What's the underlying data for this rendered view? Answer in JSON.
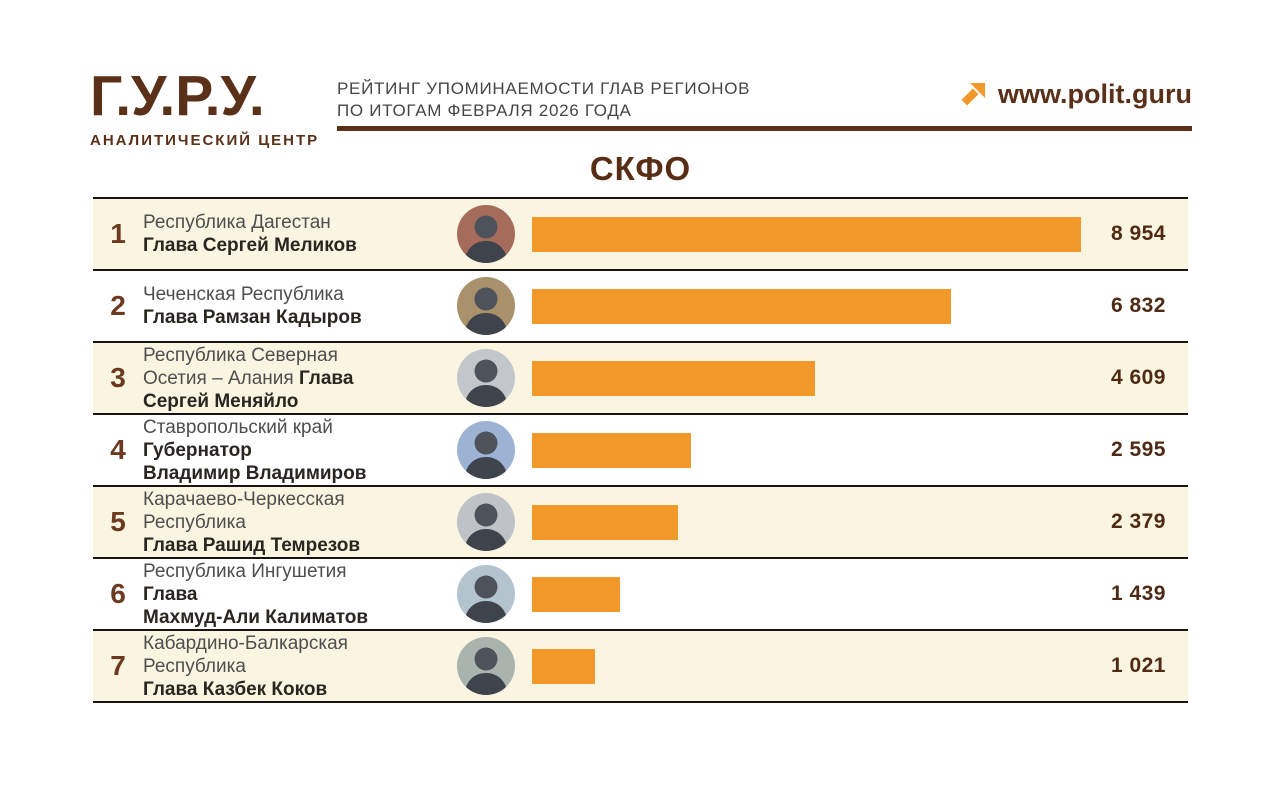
{
  "header": {
    "logo_title": "Г.У.Р.У.",
    "logo_subtitle": "АНАЛИТИЧЕСКИЙ ЦЕНТР",
    "report_title_line1": "РЕЙТИНГ УПОМИНАЕМОСТИ ГЛАВ РЕГИОНОВ",
    "report_title_line2": "ПО ИТОГАМ ФЕВРАЛЯ 2026 ГОДА",
    "website": "www.polit.guru",
    "website_arrow_icon": "arrow-up-right-icon"
  },
  "section_title": "СКФО",
  "colors": {
    "accent_orange": "#f2992b",
    "brand_brown": "#5a3018",
    "row_alt_bg": "#faf5e1",
    "row_bg": "#ffffff",
    "separator": "#171411",
    "rank_text": "#6b3a20",
    "value_text": "#4e2a15",
    "region_text": "#4e4e4e",
    "name_text": "#292520",
    "silhouette_head": "#4e525b",
    "silhouette_body": "#3f434b"
  },
  "rows": [
    {
      "rank": "1",
      "lines": [
        [
          {
            "t": "Республика Дагестан",
            "b": false
          }
        ],
        [
          {
            "t": "Глава Сергей Меликов",
            "b": true
          }
        ]
      ],
      "value": 8954,
      "value_label": "8 954",
      "photo": "photo-sergey-melikov",
      "photo_bg": "#a56c5c"
    },
    {
      "rank": "2",
      "lines": [
        [
          {
            "t": "Чеченская Республика",
            "b": false
          }
        ],
        [
          {
            "t": "Глава Рамзан Кадыров",
            "b": true
          }
        ]
      ],
      "value": 6832,
      "value_label": "6 832",
      "photo": "photo-ramzan-kadyrov",
      "photo_bg": "#a8916b"
    },
    {
      "rank": "3",
      "lines": [
        [
          {
            "t": "Республика Северная",
            "b": false
          }
        ],
        [
          {
            "t": "Осетия – Алания ",
            "b": false
          },
          {
            "t": "Глава",
            "b": true
          }
        ],
        [
          {
            "t": "Сергей Меняйло",
            "b": true
          }
        ]
      ],
      "value": 4609,
      "value_label": "4 609",
      "photo": "photo-sergey-menyaylo",
      "photo_bg": "#c3c6ca"
    },
    {
      "rank": "4",
      "lines": [
        [
          {
            "t": "Ставропольский край",
            "b": false
          }
        ],
        [
          {
            "t": "Губернатор",
            "b": true
          }
        ],
        [
          {
            "t": "Владимир Владимиров",
            "b": true
          }
        ]
      ],
      "value": 2595,
      "value_label": "2 595",
      "photo": "photo-vladimir-vladimirov",
      "photo_bg": "#9db3d3"
    },
    {
      "rank": "5",
      "lines": [
        [
          {
            "t": "Карачаево-Черкесская",
            "b": false
          }
        ],
        [
          {
            "t": "Республика",
            "b": false
          }
        ],
        [
          {
            "t": "Глава Рашид Темрезов",
            "b": true
          }
        ]
      ],
      "value": 2379,
      "value_label": "2 379",
      "photo": "photo-rashid-temrezov",
      "photo_bg": "#bfc3c7"
    },
    {
      "rank": "6",
      "lines": [
        [
          {
            "t": "Республика Ингушетия",
            "b": false
          }
        ],
        [
          {
            "t": "Глава",
            "b": true
          }
        ],
        [
          {
            "t": "Махмуд-Али Калиматов",
            "b": true
          }
        ]
      ],
      "value": 1439,
      "value_label": "1 439",
      "photo": "photo-makhmud-ali-kalimatov",
      "photo_bg": "#b4c4cf"
    },
    {
      "rank": "7",
      "lines": [
        [
          {
            "t": "Кабардино-Балкарская",
            "b": false
          }
        ],
        [
          {
            "t": "Республика",
            "b": false
          }
        ],
        [
          {
            "t": "Глава Казбек Коков",
            "b": true
          }
        ]
      ],
      "value": 1021,
      "value_label": "1 021",
      "photo": "photo-kazbek-kokov",
      "photo_bg": "#aab4ae"
    }
  ],
  "chart_data": {
    "type": "bar",
    "orientation": "horizontal",
    "title": "СКФО",
    "subtitle": "РЕЙТИНГ УПОМИНАЕМОСТИ ГЛАВ РЕГИОНОВ ПО ИТОГАМ ФЕВРАЛЯ 2026 ГОДА",
    "source": "www.polit.guru",
    "categories": [
      "Республика Дагестан — Глава Сергей Меликов",
      "Чеченская Республика — Глава Рамзан Кадыров",
      "Республика Северная Осетия – Алания — Глава Сергей Меняйло",
      "Ставропольский край — Губернатор Владимир Владимиров",
      "Карачаево-Черкесская Республика — Глава Рашид Темрезов",
      "Республика Ингушетия — Глава Махмуд-Али Калиматов",
      "Кабардино-Балкарская Республика — Глава Казбек Коков"
    ],
    "values": [
      8954,
      6832,
      4609,
      2595,
      2379,
      1439,
      1021
    ],
    "value_labels": [
      "8 954",
      "6 832",
      "4 609",
      "2 595",
      "2 379",
      "1 439",
      "1 021"
    ],
    "xlim": [
      0,
      8954
    ],
    "bar_color": "#f2992b",
    "grid": false,
    "legend": false
  }
}
